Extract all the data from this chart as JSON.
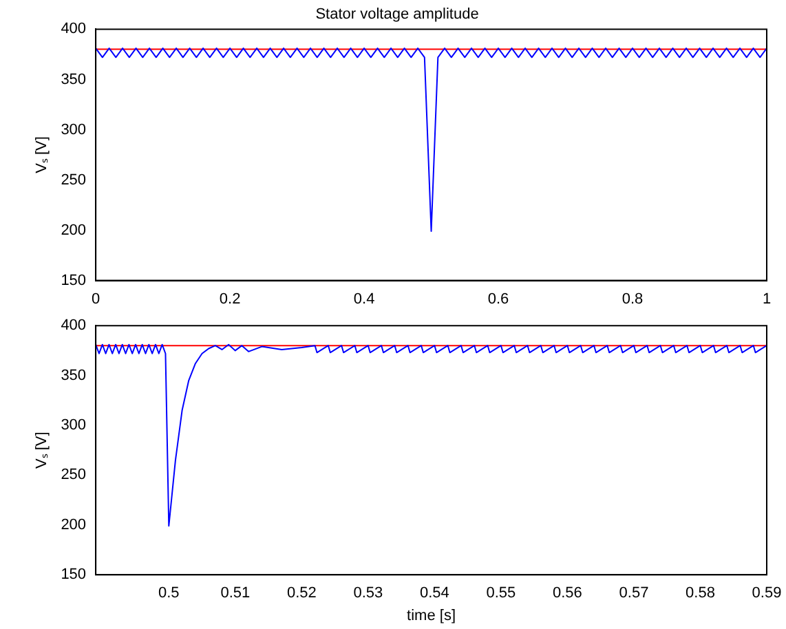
{
  "chart_data": [
    {
      "type": "line",
      "title": "Stator voltage amplitude",
      "ylabel": "Vₛ [V]",
      "x": [
        0,
        0.01,
        0.02,
        0.03,
        0.04,
        0.05,
        0.06,
        0.07,
        0.08,
        0.09,
        0.1,
        0.11,
        0.12,
        0.13,
        0.14,
        0.15,
        0.16,
        0.17,
        0.18,
        0.19,
        0.2,
        0.21,
        0.22,
        0.23,
        0.24,
        0.25,
        0.26,
        0.27,
        0.28,
        0.29,
        0.3,
        0.31,
        0.32,
        0.33,
        0.34,
        0.35,
        0.36,
        0.37,
        0.38,
        0.39,
        0.4,
        0.41,
        0.42,
        0.43,
        0.44,
        0.45,
        0.46,
        0.47,
        0.48,
        0.49,
        0.5,
        0.51,
        0.52,
        0.53,
        0.54,
        0.55,
        0.56,
        0.57,
        0.58,
        0.59,
        0.6,
        0.61,
        0.62,
        0.63,
        0.64,
        0.65,
        0.66,
        0.67,
        0.68,
        0.69,
        0.7,
        0.71,
        0.72,
        0.73,
        0.74,
        0.75,
        0.76,
        0.77,
        0.78,
        0.79,
        0.8,
        0.81,
        0.82,
        0.83,
        0.84,
        0.85,
        0.86,
        0.87,
        0.88,
        0.89,
        0.9,
        0.91,
        0.92,
        0.93,
        0.94,
        0.95,
        0.96,
        0.97,
        0.98,
        0.99,
        1
      ],
      "series": [
        {
          "color": "#0000ff",
          "values": [
            381,
            372,
            381,
            372,
            381,
            372,
            381,
            372,
            381,
            372,
            381,
            372,
            381,
            372,
            381,
            372,
            381,
            372,
            381,
            372,
            381,
            372,
            381,
            372,
            381,
            372,
            381,
            372,
            381,
            372,
            381,
            372,
            381,
            372,
            381,
            372,
            381,
            372,
            381,
            372,
            381,
            372,
            381,
            372,
            381,
            372,
            381,
            372,
            381,
            372,
            199,
            372,
            381,
            372,
            381,
            372,
            381,
            372,
            381,
            372,
            381,
            372,
            381,
            372,
            381,
            372,
            381,
            372,
            381,
            372,
            381,
            372,
            381,
            372,
            381,
            372,
            381,
            372,
            381,
            372,
            381,
            372,
            381,
            372,
            381,
            372,
            381,
            372,
            381,
            372,
            381,
            372,
            381,
            372,
            381,
            372,
            381,
            372,
            381,
            372,
            381
          ]
        }
      ],
      "ref_lines": [
        {
          "axis": "y",
          "value": 380,
          "color": "#ff0000"
        }
      ],
      "xlim": [
        0,
        1
      ],
      "xticks": [
        0,
        0.2,
        0.4,
        0.6,
        0.8,
        1
      ],
      "ylim": [
        150,
        400
      ],
      "yticks": [
        150,
        200,
        250,
        300,
        350,
        400
      ]
    },
    {
      "type": "line",
      "xlabel": "time [s]",
      "ylabel": "Vₛ [V]",
      "x": [
        0.489,
        0.4895,
        0.49,
        0.4905,
        0.491,
        0.4915,
        0.492,
        0.4925,
        0.493,
        0.4935,
        0.494,
        0.4945,
        0.495,
        0.4955,
        0.496,
        0.4965,
        0.497,
        0.4975,
        0.498,
        0.4985,
        0.499,
        0.4995,
        0.5,
        0.501,
        0.502,
        0.503,
        0.504,
        0.505,
        0.506,
        0.507,
        0.508,
        0.509,
        0.51,
        0.511,
        0.512,
        0.514,
        0.517,
        0.52,
        0.522,
        0.5223,
        0.524,
        0.5243,
        0.526,
        0.5263,
        0.528,
        0.5283,
        0.53,
        0.5303,
        0.532,
        0.5323,
        0.534,
        0.5343,
        0.536,
        0.5363,
        0.538,
        0.5383,
        0.54,
        0.5403,
        0.542,
        0.5423,
        0.544,
        0.5443,
        0.546,
        0.5463,
        0.548,
        0.5483,
        0.55,
        0.5503,
        0.552,
        0.5523,
        0.554,
        0.5543,
        0.556,
        0.5563,
        0.558,
        0.5583,
        0.56,
        0.5603,
        0.562,
        0.5623,
        0.564,
        0.5643,
        0.566,
        0.5663,
        0.568,
        0.5683,
        0.57,
        0.5703,
        0.572,
        0.5723,
        0.574,
        0.5743,
        0.576,
        0.5763,
        0.578,
        0.5783,
        0.58,
        0.5803,
        0.582,
        0.5823,
        0.584,
        0.5843,
        0.586,
        0.5863,
        0.588,
        0.5883,
        0.59
      ],
      "series": [
        {
          "color": "#0000ff",
          "values": [
            381,
            372,
            381,
            372,
            381,
            372,
            381,
            372,
            381,
            372,
            381,
            372,
            381,
            372,
            381,
            372,
            381,
            372,
            381,
            372,
            381,
            372,
            199,
            265,
            315,
            345,
            362,
            372,
            377,
            380,
            376,
            381,
            375,
            380,
            374,
            379,
            376,
            378,
            380,
            373,
            380,
            373,
            380,
            373,
            380,
            373,
            380,
            373,
            380,
            373,
            380,
            373,
            380,
            373,
            380,
            373,
            380,
            373,
            380,
            373,
            380,
            373,
            380,
            373,
            380,
            373,
            380,
            373,
            380,
            373,
            380,
            373,
            380,
            373,
            380,
            373,
            380,
            373,
            380,
            373,
            380,
            373,
            380,
            373,
            380,
            373,
            380,
            373,
            380,
            373,
            380,
            373,
            380,
            373,
            380,
            373,
            380,
            373,
            380,
            373,
            380,
            373,
            380,
            373,
            380,
            373,
            380
          ]
        }
      ],
      "ref_lines": [
        {
          "axis": "y",
          "value": 380,
          "color": "#ff0000"
        }
      ],
      "xlim": [
        0.489,
        0.59
      ],
      "xticks": [
        0.5,
        0.51,
        0.52,
        0.53,
        0.54,
        0.55,
        0.56,
        0.57,
        0.58,
        0.59
      ],
      "ylim": [
        150,
        400
      ],
      "yticks": [
        150,
        200,
        250,
        300,
        350,
        400
      ]
    }
  ]
}
